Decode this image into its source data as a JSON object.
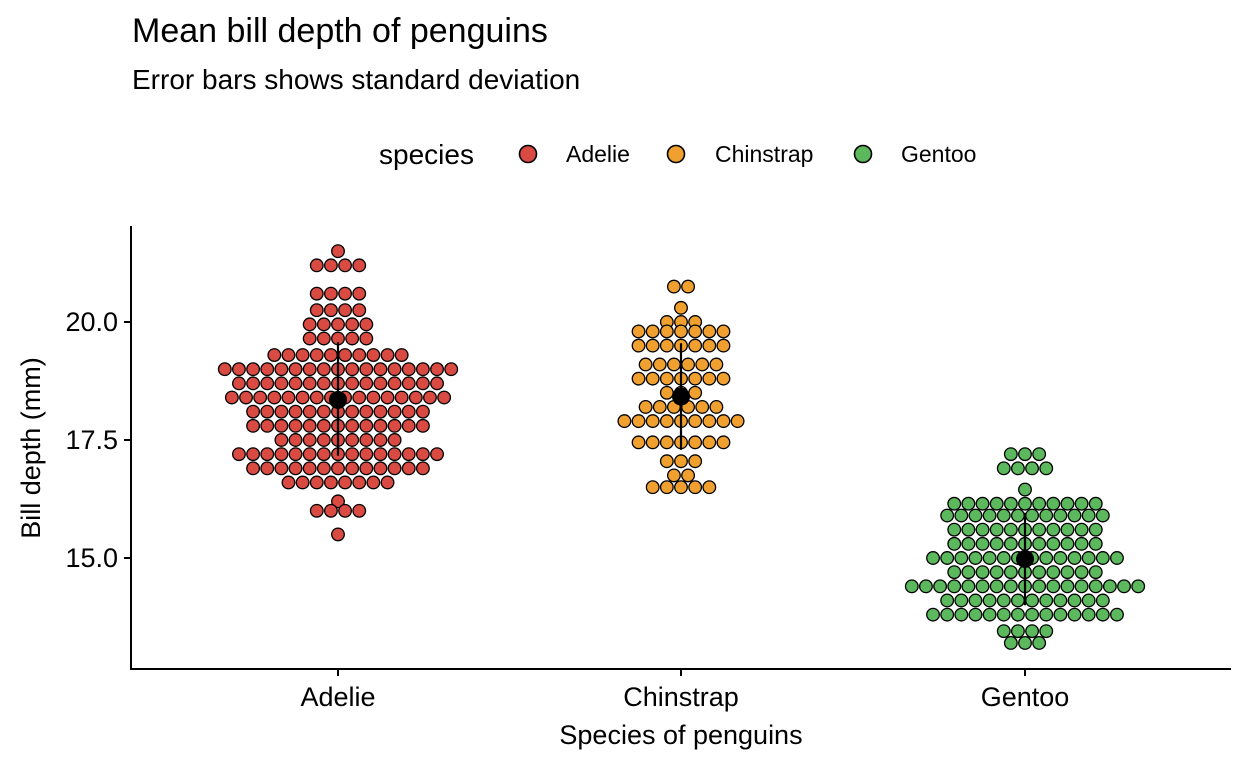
{
  "chart_data": {
    "type": "scatter",
    "style": "dotplot (beeswarm) with mean point and standard deviation error bars",
    "title": "Mean bill depth of penguins",
    "subtitle": "Error bars shows standard deviation",
    "xlabel": "Species of penguins",
    "ylabel": "Bill depth (mm)",
    "ylim": [
      12.9,
      22.0
    ],
    "yticks": [
      15.0,
      17.5,
      20.0
    ],
    "ytick_labels": [
      "15.0",
      "17.5",
      "20.0"
    ],
    "categories": [
      "Adelie",
      "Chinstrap",
      "Gentoo"
    ],
    "legend": {
      "title": "species",
      "position": "top",
      "entries": [
        "Adelie",
        "Chinstrap",
        "Gentoo"
      ]
    },
    "grid": false,
    "series": [
      {
        "name": "Adelie",
        "color": "#D94A42",
        "mean": 18.35,
        "sd_low": 17.17,
        "sd_high": 19.57,
        "bins": [
          {
            "y": 21.5,
            "count": 1
          },
          {
            "y": 21.2,
            "count": 4
          },
          {
            "y": 20.6,
            "count": 4
          },
          {
            "y": 20.25,
            "count": 4
          },
          {
            "y": 19.95,
            "count": 5
          },
          {
            "y": 19.65,
            "count": 5
          },
          {
            "y": 19.3,
            "count": 10
          },
          {
            "y": 19.0,
            "count": 17
          },
          {
            "y": 18.7,
            "count": 15
          },
          {
            "y": 18.4,
            "count": 16
          },
          {
            "y": 18.1,
            "count": 13
          },
          {
            "y": 17.8,
            "count": 13
          },
          {
            "y": 17.5,
            "count": 9
          },
          {
            "y": 17.2,
            "count": 15
          },
          {
            "y": 16.9,
            "count": 13
          },
          {
            "y": 16.6,
            "count": 8
          },
          {
            "y": 16.2,
            "count": 1
          },
          {
            "y": 16.0,
            "count": 4
          },
          {
            "y": 15.5,
            "count": 1
          }
        ]
      },
      {
        "name": "Chinstrap",
        "color": "#F0A02F",
        "mean": 18.42,
        "sd_low": 17.29,
        "sd_high": 19.55,
        "bins": [
          {
            "y": 20.75,
            "count": 2
          },
          {
            "y": 20.3,
            "count": 1
          },
          {
            "y": 20.0,
            "count": 3
          },
          {
            "y": 19.8,
            "count": 7
          },
          {
            "y": 19.5,
            "count": 7
          },
          {
            "y": 19.1,
            "count": 6
          },
          {
            "y": 18.8,
            "count": 7
          },
          {
            "y": 18.5,
            "count": 3
          },
          {
            "y": 18.2,
            "count": 6
          },
          {
            "y": 17.9,
            "count": 9
          },
          {
            "y": 17.45,
            "count": 7
          },
          {
            "y": 17.05,
            "count": 3
          },
          {
            "y": 16.75,
            "count": 2
          },
          {
            "y": 16.5,
            "count": 5
          }
        ]
      },
      {
        "name": "Gentoo",
        "color": "#5CB85C",
        "mean": 14.98,
        "sd_low": 14.0,
        "sd_high": 15.96,
        "bins": [
          {
            "y": 17.2,
            "count": 3
          },
          {
            "y": 16.9,
            "count": 4
          },
          {
            "y": 16.45,
            "count": 1
          },
          {
            "y": 16.15,
            "count": 11
          },
          {
            "y": 15.9,
            "count": 12
          },
          {
            "y": 15.6,
            "count": 11
          },
          {
            "y": 15.3,
            "count": 11
          },
          {
            "y": 15.0,
            "count": 14
          },
          {
            "y": 14.7,
            "count": 11
          },
          {
            "y": 14.4,
            "count": 17
          },
          {
            "y": 14.1,
            "count": 12
          },
          {
            "y": 13.8,
            "count": 14
          },
          {
            "y": 13.45,
            "count": 4
          },
          {
            "y": 13.2,
            "count": 3
          }
        ]
      }
    ]
  }
}
